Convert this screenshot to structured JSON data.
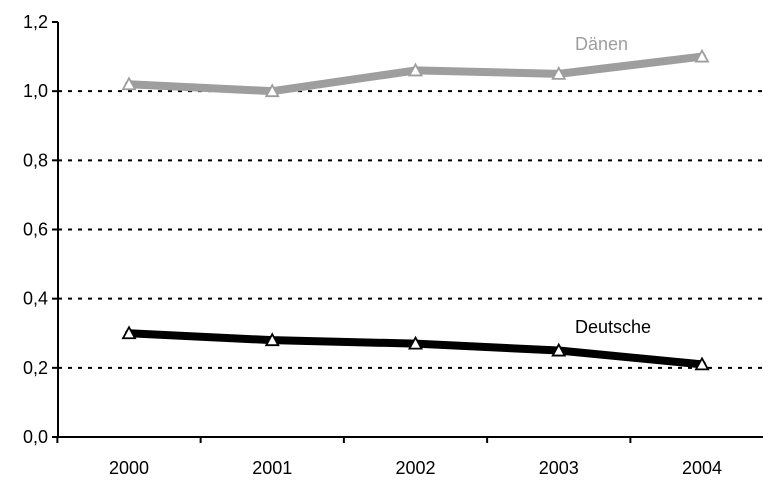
{
  "chart_data": {
    "type": "line",
    "categories": [
      "2000",
      "2001",
      "2002",
      "2003",
      "2004"
    ],
    "y_ticks": [
      "0,0",
      "0,2",
      "0,4",
      "0,6",
      "0,8",
      "1,0",
      "1,2"
    ],
    "ylim": [
      0,
      1.2
    ],
    "grid": "horizontal dotted",
    "series": [
      {
        "name": "Dänen",
        "values": [
          1.02,
          1.0,
          1.06,
          1.05,
          1.1
        ],
        "color": "#9e9e9e"
      },
      {
        "name": "Deutsche",
        "values": [
          0.3,
          0.28,
          0.27,
          0.25,
          0.21
        ],
        "color": "#000000"
      }
    ]
  }
}
